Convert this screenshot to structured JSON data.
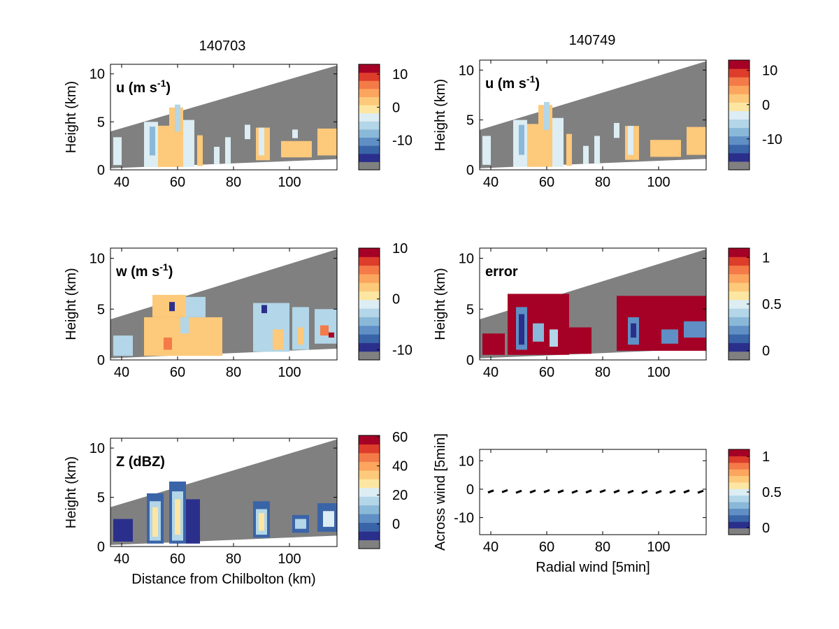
{
  "figure": {
    "col_titles": [
      "140703",
      "140749"
    ]
  },
  "colors": {
    "background": "#ffffff",
    "no_data": "#808080",
    "palette": [
      "#2b2f8c",
      "#3a64a8",
      "#5f8fc4",
      "#8ab8d8",
      "#b3d6e8",
      "#dcedf3",
      "#fde6a2",
      "#fdc97a",
      "#fca55e",
      "#f47a48",
      "#dd3d2a",
      "#a50026"
    ]
  },
  "chart_data": [
    {
      "id": "u-140703",
      "type": "heatmap",
      "label": "u (m s",
      "label_sup": "-1",
      "label_tail": ")",
      "ylabel": "Height (km)",
      "xlabel": "",
      "xlim": [
        36,
        117
      ],
      "ylim": [
        0,
        11
      ],
      "xticks": [
        40,
        60,
        80,
        100
      ],
      "yticks": [
        0,
        5,
        10
      ],
      "colorbar": {
        "range": [
          -19,
          13
        ],
        "ticks": [
          10,
          0,
          -10
        ]
      },
      "cells": [
        {
          "x0": 37,
          "x1": 40,
          "y0": 0.5,
          "y1": 3.4,
          "v": -4
        },
        {
          "x0": 48,
          "x1": 53,
          "y0": 0.3,
          "y1": 5.0,
          "v": -4
        },
        {
          "x0": 50,
          "x1": 52,
          "y0": 1.5,
          "y1": 4.5,
          "v": -9
        },
        {
          "x0": 53,
          "x1": 57,
          "y0": 0.3,
          "y1": 4.6,
          "v": 2
        },
        {
          "x0": 57,
          "x1": 62,
          "y0": 0.3,
          "y1": 6.5,
          "v": 2
        },
        {
          "x0": 59,
          "x1": 61,
          "y0": 4.0,
          "y1": 6.8,
          "v": -6
        },
        {
          "x0": 62,
          "x1": 66,
          "y0": 0.3,
          "y1": 5.2,
          "v": -4
        },
        {
          "x0": 67,
          "x1": 69,
          "y0": 0.4,
          "y1": 3.6,
          "v": 2
        },
        {
          "x0": 73,
          "x1": 75,
          "y0": 0.6,
          "y1": 2.4,
          "v": -4
        },
        {
          "x0": 77,
          "x1": 79,
          "y0": 0.6,
          "y1": 3.4,
          "v": -4
        },
        {
          "x0": 84,
          "x1": 86,
          "y0": 3.2,
          "y1": 4.7,
          "v": -4
        },
        {
          "x0": 88,
          "x1": 93,
          "y0": 1.0,
          "y1": 4.4,
          "v": 2
        },
        {
          "x0": 89,
          "x1": 91,
          "y0": 1.5,
          "y1": 4.4,
          "v": -4
        },
        {
          "x0": 101,
          "x1": 103,
          "y0": 3.3,
          "y1": 4.2,
          "v": -4
        },
        {
          "x0": 97,
          "x1": 108,
          "y0": 1.3,
          "y1": 3.0,
          "v": 2
        },
        {
          "x0": 110,
          "x1": 117,
          "y0": 1.5,
          "y1": 4.3,
          "v": 2
        }
      ]
    },
    {
      "id": "u-140749",
      "type": "heatmap",
      "label": "u (m s",
      "label_sup": "-1",
      "label_tail": ")",
      "ylabel": "Height (km)",
      "xlabel": "",
      "xlim": [
        36,
        117
      ],
      "ylim": [
        0,
        11
      ],
      "xticks": [
        40,
        60,
        80,
        100
      ],
      "yticks": [
        0,
        5,
        10
      ],
      "colorbar": {
        "range": [
          -19,
          13
        ],
        "ticks": [
          10,
          0,
          -10
        ]
      },
      "cells": [
        {
          "x0": 37,
          "x1": 40,
          "y0": 0.5,
          "y1": 3.4,
          "v": -4
        },
        {
          "x0": 48,
          "x1": 53,
          "y0": 0.3,
          "y1": 5.0,
          "v": -4
        },
        {
          "x0": 50,
          "x1": 52,
          "y0": 1.5,
          "y1": 4.5,
          "v": -9
        },
        {
          "x0": 53,
          "x1": 57,
          "y0": 0.3,
          "y1": 4.6,
          "v": 2
        },
        {
          "x0": 57,
          "x1": 62,
          "y0": 0.3,
          "y1": 6.5,
          "v": 2
        },
        {
          "x0": 59,
          "x1": 61,
          "y0": 4.0,
          "y1": 6.8,
          "v": -6
        },
        {
          "x0": 62,
          "x1": 66,
          "y0": 0.3,
          "y1": 5.2,
          "v": -4
        },
        {
          "x0": 67,
          "x1": 69,
          "y0": 0.4,
          "y1": 3.6,
          "v": 2
        },
        {
          "x0": 73,
          "x1": 75,
          "y0": 0.6,
          "y1": 2.4,
          "v": -4
        },
        {
          "x0": 77,
          "x1": 79,
          "y0": 0.6,
          "y1": 3.4,
          "v": -4
        },
        {
          "x0": 84,
          "x1": 86,
          "y0": 3.2,
          "y1": 4.7,
          "v": -4
        },
        {
          "x0": 88,
          "x1": 93,
          "y0": 1.0,
          "y1": 4.4,
          "v": 2
        },
        {
          "x0": 89,
          "x1": 91,
          "y0": 1.5,
          "y1": 4.4,
          "v": -4
        },
        {
          "x0": 97,
          "x1": 108,
          "y0": 1.3,
          "y1": 3.0,
          "v": 2
        },
        {
          "x0": 110,
          "x1": 117,
          "y0": 1.5,
          "y1": 4.3,
          "v": 2
        }
      ]
    },
    {
      "id": "w-140703",
      "type": "heatmap",
      "label": "w (m s",
      "label_sup": "-1",
      "label_tail": ")",
      "ylabel": "Height (km)",
      "xlabel": "",
      "xlim": [
        36,
        117
      ],
      "ylim": [
        0,
        11
      ],
      "xticks": [
        40,
        60,
        80,
        100
      ],
      "yticks": [
        0,
        5,
        10
      ],
      "colorbar": {
        "range": [
          -12,
          10
        ],
        "ticks": [
          10,
          0,
          -10
        ]
      },
      "cells": [
        {
          "x0": 37,
          "x1": 44,
          "y0": 0.4,
          "y1": 2.4,
          "v": -2
        },
        {
          "x0": 48,
          "x1": 76,
          "y0": 0.4,
          "y1": 4.2,
          "v": 2
        },
        {
          "x0": 51,
          "x1": 63,
          "y0": 4.2,
          "y1": 6.4,
          "v": 2
        },
        {
          "x0": 63,
          "x1": 70,
          "y0": 4.2,
          "y1": 6.2,
          "v": -2
        },
        {
          "x0": 55,
          "x1": 58,
          "y0": 1.0,
          "y1": 2.2,
          "v": 6
        },
        {
          "x0": 57,
          "x1": 59,
          "y0": 4.8,
          "y1": 5.7,
          "v": -9
        },
        {
          "x0": 61,
          "x1": 64,
          "y0": 2.6,
          "y1": 4.2,
          "v": -2
        },
        {
          "x0": 87,
          "x1": 100,
          "y0": 0.8,
          "y1": 5.6,
          "v": -2
        },
        {
          "x0": 90,
          "x1": 92,
          "y0": 4.6,
          "y1": 5.4,
          "v": -9
        },
        {
          "x0": 94,
          "x1": 98,
          "y0": 1.0,
          "y1": 3.0,
          "v": 2
        },
        {
          "x0": 101,
          "x1": 107,
          "y0": 1.0,
          "y1": 5.2,
          "v": -2
        },
        {
          "x0": 103,
          "x1": 105,
          "y0": 1.5,
          "y1": 3.2,
          "v": 2
        },
        {
          "x0": 109,
          "x1": 117,
          "y0": 1.6,
          "y1": 5.0,
          "v": -2
        },
        {
          "x0": 111,
          "x1": 114,
          "y0": 2.4,
          "y1": 3.4,
          "v": 6
        },
        {
          "x0": 114,
          "x1": 116,
          "y0": 2.2,
          "y1": 2.7,
          "v": 10
        }
      ]
    },
    {
      "id": "error-140749",
      "type": "heatmap",
      "label": "error",
      "label_sup": "",
      "label_tail": "",
      "ylabel": "Height (km)",
      "xlabel": "",
      "xlim": [
        36,
        117
      ],
      "ylim": [
        0,
        11
      ],
      "xticks": [
        40,
        60,
        80,
        100
      ],
      "yticks": [
        0,
        5,
        10
      ],
      "colorbar": {
        "range": [
          -0.1,
          1.1
        ],
        "ticks": [
          1,
          0.5,
          0
        ]
      },
      "cells": [
        {
          "x0": 37,
          "x1": 45,
          "y0": 0.5,
          "y1": 2.6,
          "v": 1.05
        },
        {
          "x0": 46,
          "x1": 68,
          "y0": 0.5,
          "y1": 6.5,
          "v": 1.05
        },
        {
          "x0": 68,
          "x1": 76,
          "y0": 0.6,
          "y1": 3.2,
          "v": 1.05
        },
        {
          "x0": 49,
          "x1": 53,
          "y0": 1.0,
          "y1": 5.2,
          "v": 0.2
        },
        {
          "x0": 50,
          "x1": 52,
          "y0": 1.5,
          "y1": 4.5,
          "v": 0.05
        },
        {
          "x0": 55,
          "x1": 59,
          "y0": 1.8,
          "y1": 3.6,
          "v": 0.35
        },
        {
          "x0": 61,
          "x1": 64,
          "y0": 1.3,
          "y1": 3.0,
          "v": 0.45
        },
        {
          "x0": 85,
          "x1": 117,
          "y0": 0.9,
          "y1": 6.3,
          "v": 1.05
        },
        {
          "x0": 89,
          "x1": 93,
          "y0": 1.5,
          "y1": 4.2,
          "v": 0.25
        },
        {
          "x0": 90,
          "x1": 92,
          "y0": 2.2,
          "y1": 3.6,
          "v": 0.05
        },
        {
          "x0": 101,
          "x1": 107,
          "y0": 1.6,
          "y1": 3.0,
          "v": 0.25
        },
        {
          "x0": 109,
          "x1": 117,
          "y0": 2.2,
          "y1": 3.8,
          "v": 0.2
        }
      ]
    },
    {
      "id": "z-140703",
      "type": "heatmap",
      "label": "Z (dBZ)",
      "label_sup": "",
      "label_tail": "",
      "ylabel": "Height (km)",
      "xlabel": "Distance from Chilbolton (km)",
      "xlim": [
        36,
        117
      ],
      "ylim": [
        0,
        11
      ],
      "xticks": [
        40,
        60,
        80,
        100
      ],
      "yticks": [
        0,
        5,
        10
      ],
      "colorbar": {
        "range": [
          -17,
          61
        ],
        "ticks": [
          60,
          40,
          20,
          0
        ]
      },
      "cells": [
        {
          "x0": 37,
          "x1": 44,
          "y0": 0.5,
          "y1": 2.8,
          "v": -10
        },
        {
          "x0": 49,
          "x1": 55,
          "y0": 0.3,
          "y1": 5.4,
          "v": 0
        },
        {
          "x0": 50,
          "x1": 54,
          "y0": 0.6,
          "y1": 4.6,
          "v": 15
        },
        {
          "x0": 51,
          "x1": 53,
          "y0": 1.0,
          "y1": 4.0,
          "v": 28
        },
        {
          "x0": 57,
          "x1": 63,
          "y0": 0.3,
          "y1": 6.6,
          "v": 0
        },
        {
          "x0": 58,
          "x1": 62,
          "y0": 0.6,
          "y1": 5.6,
          "v": 15
        },
        {
          "x0": 59,
          "x1": 61,
          "y0": 1.2,
          "y1": 4.8,
          "v": 28
        },
        {
          "x0": 63,
          "x1": 68,
          "y0": 0.3,
          "y1": 4.8,
          "v": -8
        },
        {
          "x0": 87,
          "x1": 93,
          "y0": 0.9,
          "y1": 4.6,
          "v": 0
        },
        {
          "x0": 88,
          "x1": 92,
          "y0": 1.2,
          "y1": 3.8,
          "v": 15
        },
        {
          "x0": 89,
          "x1": 91,
          "y0": 1.6,
          "y1": 3.4,
          "v": 28
        },
        {
          "x0": 101,
          "x1": 107,
          "y0": 1.4,
          "y1": 3.2,
          "v": 0
        },
        {
          "x0": 102,
          "x1": 106,
          "y0": 1.8,
          "y1": 2.8,
          "v": 18
        },
        {
          "x0": 110,
          "x1": 117,
          "y0": 1.5,
          "y1": 4.4,
          "v": 0
        },
        {
          "x0": 112,
          "x1": 116,
          "y0": 2.0,
          "y1": 3.6,
          "v": 20
        }
      ]
    },
    {
      "id": "wind-140749",
      "type": "scatter",
      "label": "",
      "ylabel": "Across wind [5min]",
      "xlabel": "Radial wind [5min]",
      "xlim": [
        36,
        117
      ],
      "ylim": [
        -16,
        14
      ],
      "xticks": [
        40,
        60,
        80,
        100
      ],
      "yticks": [
        10,
        0,
        -10
      ],
      "colorbar": {
        "range": [
          -0.1,
          1.1
        ],
        "ticks": [
          1,
          0.5,
          0
        ]
      },
      "x": [
        40,
        45,
        50,
        55,
        60,
        65,
        70,
        75,
        80,
        85,
        90,
        95,
        100,
        105,
        110,
        115
      ],
      "y": [
        -0.8,
        -0.7,
        -0.9,
        -0.8,
        -0.7,
        -0.8,
        -0.9,
        -0.8,
        -0.7,
        -0.8,
        -0.9,
        -1.0,
        -1.0,
        -0.9,
        -0.8,
        -0.9
      ]
    }
  ]
}
